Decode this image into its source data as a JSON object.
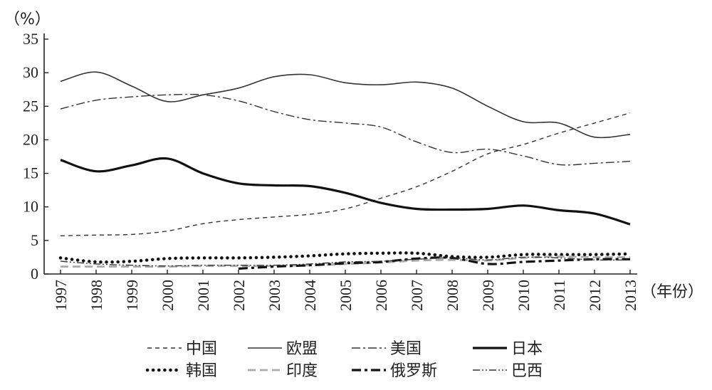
{
  "chart_data": {
    "type": "line",
    "y_unit": "（%）",
    "x_unit": "（年份）",
    "ylim": [
      0,
      35
    ],
    "yticks": [
      0,
      5,
      10,
      15,
      20,
      25,
      30,
      35
    ],
    "x": [
      "1997",
      "1998",
      "1999",
      "2000",
      "2001",
      "2002",
      "2003",
      "2004",
      "2005",
      "2006",
      "2007",
      "2008",
      "2009",
      "2010",
      "2011",
      "2012",
      "2013"
    ],
    "grid": false,
    "legend_position": "bottom",
    "series": [
      {
        "name": "中国",
        "style": "dashed-thin",
        "color": "#333333",
        "values": [
          5.7,
          5.8,
          5.9,
          6.4,
          7.5,
          8.1,
          8.5,
          8.9,
          9.7,
          11.3,
          13.0,
          15.3,
          17.9,
          19.3,
          21.0,
          22.5,
          24.0
        ]
      },
      {
        "name": "欧盟",
        "style": "solid-thin",
        "color": "#333333",
        "values": [
          28.7,
          30.1,
          28.0,
          25.7,
          26.7,
          27.7,
          29.4,
          29.7,
          28.5,
          28.2,
          28.6,
          27.7,
          25.0,
          22.7,
          22.5,
          20.4,
          20.8
        ]
      },
      {
        "name": "美国",
        "style": "dashdot-thin",
        "color": "#333333",
        "values": [
          24.6,
          25.9,
          26.4,
          26.7,
          26.7,
          25.8,
          24.2,
          23.0,
          22.5,
          21.9,
          19.7,
          18.1,
          18.6,
          17.6,
          16.3,
          16.5,
          16.8
        ]
      },
      {
        "name": "日本",
        "style": "solid-thick",
        "color": "#111111",
        "values": [
          17.0,
          15.3,
          16.2,
          17.2,
          15.0,
          13.5,
          13.2,
          13.1,
          12.1,
          10.6,
          9.7,
          9.6,
          9.7,
          10.2,
          9.5,
          9.0,
          7.4
        ]
      },
      {
        "name": "韩国",
        "style": "dotted-thick",
        "color": "#111111",
        "values": [
          2.4,
          1.8,
          1.9,
          2.3,
          2.4,
          2.4,
          2.5,
          2.7,
          3.0,
          3.1,
          3.1,
          2.6,
          2.5,
          2.9,
          2.9,
          2.9,
          3.0
        ]
      },
      {
        "name": "印度",
        "style": "dashed-gray",
        "color": "#aaaaaa",
        "values": [
          1.1,
          1.1,
          1.1,
          1.1,
          1.2,
          1.2,
          1.2,
          1.3,
          1.5,
          1.7,
          2.0,
          2.1,
          2.0,
          2.4,
          2.6,
          2.5,
          2.5
        ]
      },
      {
        "name": "俄罗斯",
        "style": "dashdot-thick",
        "color": "#111111",
        "values": [
          null,
          null,
          null,
          null,
          null,
          0.8,
          1.1,
          1.3,
          1.6,
          1.8,
          2.3,
          2.4,
          1.5,
          1.8,
          2.0,
          2.2,
          2.2
        ]
      },
      {
        "name": "巴西",
        "style": "dashdotdot-thin",
        "color": "#333333",
        "values": [
          1.9,
          1.5,
          1.3,
          1.2,
          1.3,
          1.3,
          1.3,
          1.5,
          1.8,
          1.9,
          2.2,
          2.4,
          2.1,
          2.5,
          2.4,
          2.1,
          2.1
        ]
      }
    ]
  }
}
